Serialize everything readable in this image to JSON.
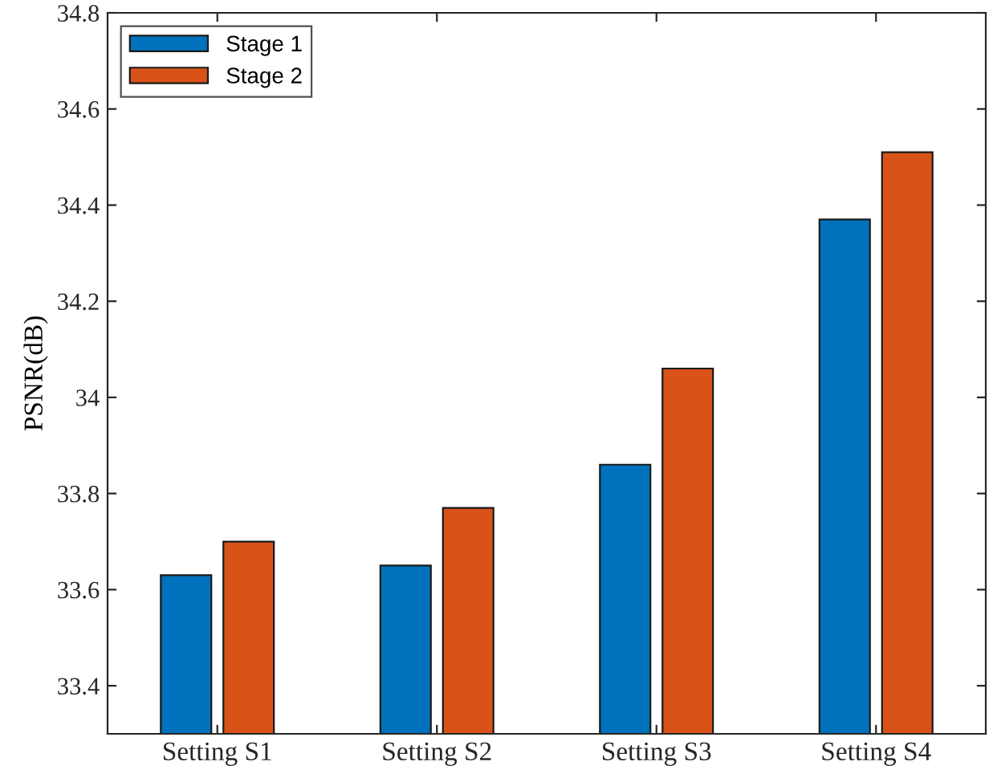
{
  "chart_data": {
    "type": "bar",
    "ylabel": "PSNR(dB)",
    "categories": [
      "Setting S1",
      "Setting S2",
      "Setting S3",
      "Setting S4"
    ],
    "series": [
      {
        "name": "Stage 1",
        "color": "#0072bd",
        "values": [
          33.63,
          33.65,
          33.86,
          34.37
        ]
      },
      {
        "name": "Stage 2",
        "color": "#d95319",
        "values": [
          33.7,
          33.77,
          34.06,
          34.51
        ]
      }
    ],
    "ylim": [
      33.3,
      34.8
    ],
    "yticks": [
      33.4,
      33.6,
      33.8,
      34,
      34.2,
      34.4,
      34.6,
      34.8
    ],
    "legend": "top left",
    "grid": false
  }
}
